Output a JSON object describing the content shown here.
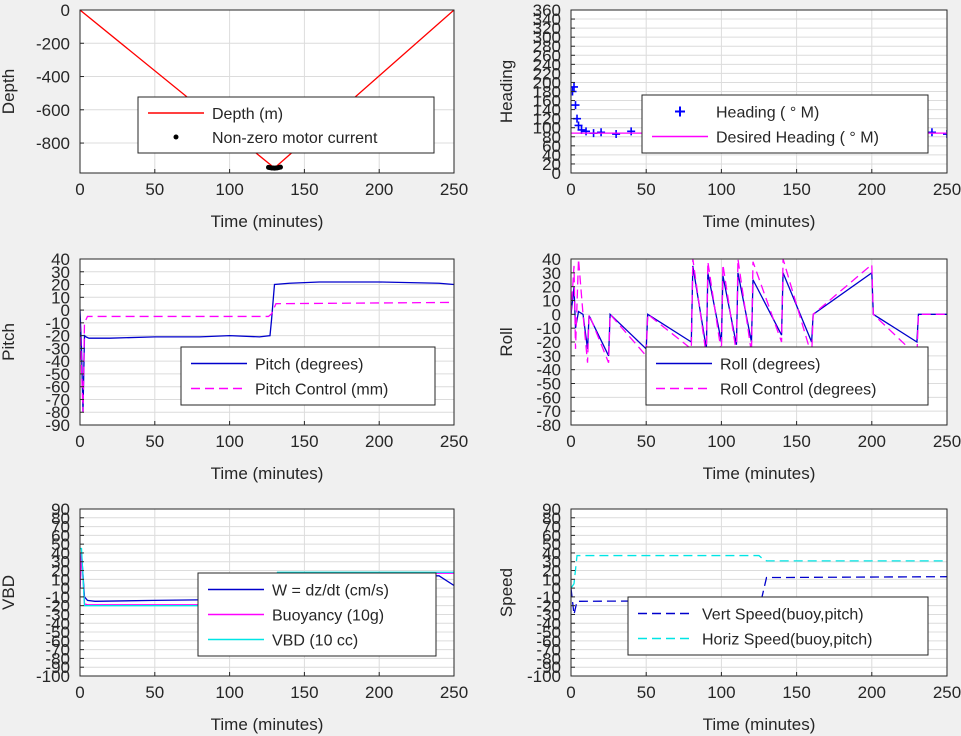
{
  "chart_data": [
    {
      "type": "line",
      "xlabel": "Time (minutes)",
      "ylabel": "Depth",
      "xlim": [
        0,
        250
      ],
      "ylim": [
        -980,
        0
      ],
      "xticks": [
        0,
        50,
        100,
        150,
        200,
        250
      ],
      "yticks": [
        0,
        -200,
        -400,
        -600,
        -800
      ],
      "grid": true,
      "legend_position": "center",
      "series": [
        {
          "name": "Depth (m)",
          "style": "line",
          "color": "#ff0000",
          "x": [
            0,
            130,
            250
          ],
          "y": [
            0,
            -950,
            0
          ]
        },
        {
          "name": "Non-zero motor current",
          "style": "dot",
          "color": "#000000",
          "x": [
            126,
            127,
            128,
            129,
            130,
            131,
            132,
            133,
            134
          ],
          "y": [
            -946,
            -948,
            -950,
            -950,
            -951,
            -950,
            -949,
            -947,
            -945
          ]
        }
      ]
    },
    {
      "type": "scatter",
      "xlabel": "Time (minutes)",
      "ylabel": "Heading",
      "xlim": [
        0,
        250
      ],
      "ylim": [
        0,
        360
      ],
      "xticks": [
        0,
        50,
        100,
        150,
        200,
        250
      ],
      "yticks": [
        0,
        20,
        40,
        60,
        80,
        100,
        120,
        140,
        160,
        180,
        200,
        220,
        240,
        260,
        280,
        300,
        320,
        340,
        360
      ],
      "grid": true,
      "legend_position": "right",
      "series": [
        {
          "name": "Heading ( ° M)",
          "style": "plus",
          "color": "#0000ff",
          "x": [
            1,
            2,
            3,
            4,
            5,
            7,
            10,
            15,
            20,
            30,
            40,
            50,
            60,
            70,
            80,
            90,
            100,
            110,
            120,
            130,
            140,
            150,
            160,
            170,
            180,
            190,
            200,
            210,
            220,
            230,
            240,
            250
          ],
          "y": [
            180,
            190,
            150,
            120,
            105,
            95,
            92,
            88,
            90,
            86,
            92,
            80,
            88,
            84,
            90,
            86,
            82,
            88,
            80,
            85,
            92,
            88,
            86,
            90,
            84,
            88,
            90,
            95,
            92,
            88,
            90,
            86
          ]
        },
        {
          "name": "Desired Heading ( ° M)",
          "style": "line",
          "color": "#ff00ff",
          "x": [
            0,
            250
          ],
          "y": [
            88,
            88
          ]
        }
      ]
    },
    {
      "type": "line",
      "xlabel": "Time (minutes)",
      "ylabel": "Pitch",
      "xlim": [
        0,
        250
      ],
      "ylim": [
        -90,
        40
      ],
      "xticks": [
        0,
        50,
        100,
        150,
        200,
        250
      ],
      "yticks": [
        40,
        30,
        20,
        10,
        0,
        -10,
        -20,
        -30,
        -40,
        -50,
        -60,
        -70,
        -80,
        -90
      ],
      "grid": true,
      "legend_position": "bottom-right",
      "series": [
        {
          "name": "Pitch (degrees)",
          "style": "solid",
          "color": "#0000cc",
          "x": [
            0,
            1,
            2,
            3,
            4,
            6,
            20,
            50,
            80,
            100,
            120,
            127,
            128,
            130,
            140,
            160,
            200,
            240,
            250
          ],
          "y": [
            0,
            -30,
            -80,
            -20,
            -21,
            -22,
            -22,
            -21,
            -21,
            -20,
            -21,
            -20,
            -8,
            20,
            21,
            22,
            22,
            21,
            20
          ]
        },
        {
          "name": "Pitch Control (mm)",
          "style": "dashed",
          "color": "#ff00ff",
          "x": [
            0,
            2,
            3,
            5,
            126,
            128,
            131,
            250
          ],
          "y": [
            -10,
            -80,
            -10,
            -5,
            -5,
            -3,
            5,
            6
          ]
        }
      ]
    },
    {
      "type": "line",
      "xlabel": "Time (minutes)",
      "ylabel": "Roll",
      "xlim": [
        0,
        250
      ],
      "ylim": [
        -80,
        40
      ],
      "xticks": [
        0,
        50,
        100,
        150,
        200,
        250
      ],
      "yticks": [
        40,
        30,
        20,
        10,
        0,
        -10,
        -20,
        -30,
        -40,
        -50,
        -60,
        -70,
        -80
      ],
      "grid": true,
      "legend_position": "bottom-right",
      "series": [
        {
          "name": "Roll (degrees)",
          "style": "solid",
          "color": "#0000cc",
          "x": [
            0,
            2,
            3,
            5,
            8,
            11,
            12,
            25,
            26,
            50,
            51,
            80,
            81,
            90,
            91,
            100,
            101,
            110,
            111,
            120,
            121,
            140,
            141,
            160,
            161,
            200,
            201,
            230,
            231,
            250
          ],
          "y": [
            0,
            20,
            -10,
            2,
            0,
            -25,
            -1,
            -30,
            0,
            -25,
            0,
            -20,
            35,
            -25,
            30,
            -20,
            28,
            -22,
            30,
            -20,
            25,
            -15,
            30,
            -20,
            0,
            30,
            0,
            -20,
            0,
            0
          ]
        },
        {
          "name": "Roll Control (degrees)",
          "style": "dashed",
          "color": "#ff00ff",
          "x": [
            0,
            2,
            3,
            5,
            8,
            11,
            12,
            25,
            26,
            50,
            51,
            80,
            81,
            90,
            91,
            100,
            101,
            110,
            111,
            120,
            121,
            140,
            141,
            160,
            161,
            200,
            201,
            230,
            231,
            250
          ],
          "y": [
            0,
            35,
            -25,
            40,
            0,
            -35,
            0,
            -35,
            0,
            -30,
            0,
            -25,
            40,
            -30,
            38,
            -28,
            36,
            -28,
            40,
            -28,
            38,
            -20,
            40,
            -30,
            0,
            36,
            0,
            -30,
            0,
            0
          ]
        }
      ]
    },
    {
      "type": "line",
      "xlabel": "Time (minutes)",
      "ylabel": "VBD",
      "xlim": [
        0,
        250
      ],
      "ylim": [
        -100,
        90
      ],
      "xticks": [
        0,
        50,
        100,
        150,
        200,
        250
      ],
      "yticks": [
        90,
        80,
        70,
        60,
        50,
        40,
        30,
        20,
        10,
        0,
        -10,
        -20,
        -30,
        -40,
        -50,
        -60,
        -70,
        -80,
        -90,
        -100
      ],
      "ytick_labels": [
        "90",
        "80",
        "70",
        "60",
        "50",
        "40",
        "30",
        "20",
        "10",
        "0",
        "-10",
        "-20",
        "-30",
        "-40",
        "-50",
        "-60",
        "-70",
        "-80",
        "-90",
        "-100"
      ],
      "grid": true,
      "legend_position": "bottom-right",
      "series": [
        {
          "name": "W = dz/dt (cm/s)",
          "style": "solid",
          "color": "#0000cc",
          "x": [
            0,
            1,
            3,
            5,
            10,
            50,
            100,
            125,
            128,
            131,
            150,
            200,
            240,
            250
          ],
          "y": [
            0,
            40,
            -10,
            -14,
            -15,
            -14,
            -13,
            -14,
            -5,
            13,
            12,
            14,
            14,
            3
          ]
        },
        {
          "name": "Buoyancy (10g)",
          "style": "solid",
          "color": "#ff00ff",
          "x": [
            0,
            1,
            3,
            5,
            125,
            128,
            131,
            250
          ],
          "y": [
            0,
            40,
            -18,
            -19,
            -19,
            0,
            17,
            17
          ]
        },
        {
          "name": "VBD (10 cc)",
          "style": "solid",
          "color": "#00e5e5",
          "x": [
            0,
            1,
            3,
            5,
            126,
            129,
            132,
            250
          ],
          "y": [
            45,
            45,
            -20,
            -20,
            -20,
            0,
            18,
            18
          ]
        }
      ]
    },
    {
      "type": "line",
      "xlabel": "Time (minutes)",
      "ylabel": "Speed",
      "xlim": [
        0,
        250
      ],
      "ylim": [
        -100,
        90
      ],
      "xticks": [
        0,
        50,
        100,
        150,
        200,
        250
      ],
      "yticks": [
        90,
        80,
        70,
        60,
        50,
        40,
        30,
        20,
        10,
        0,
        -10,
        -20,
        -30,
        -40,
        -50,
        -60,
        -70,
        -80,
        -90,
        -100
      ],
      "ytick_labels": [
        "90",
        "80",
        "70",
        "60",
        "50",
        "40",
        "30",
        "20",
        "10",
        "0",
        "-10",
        "-20",
        "-30",
        "-40",
        "-50",
        "-60",
        "-70",
        "-80",
        "-90",
        "-100"
      ],
      "grid": true,
      "legend_position": "bottom-right",
      "series": [
        {
          "name": "Vert Speed(buoy,pitch)",
          "style": "dashed",
          "color": "#0000cc",
          "x": [
            0,
            2,
            4,
            6,
            125,
            127,
            130,
            250
          ],
          "y": [
            0,
            -30,
            -15,
            -15,
            -14,
            -10,
            12,
            13
          ]
        },
        {
          "name": "Horiz Speed(buoy,pitch)",
          "style": "dashed",
          "color": "#00e5e5",
          "x": [
            0,
            2,
            4,
            6,
            125,
            127,
            130,
            250
          ],
          "y": [
            0,
            5,
            37,
            37,
            37,
            34,
            31,
            31
          ]
        }
      ]
    }
  ]
}
